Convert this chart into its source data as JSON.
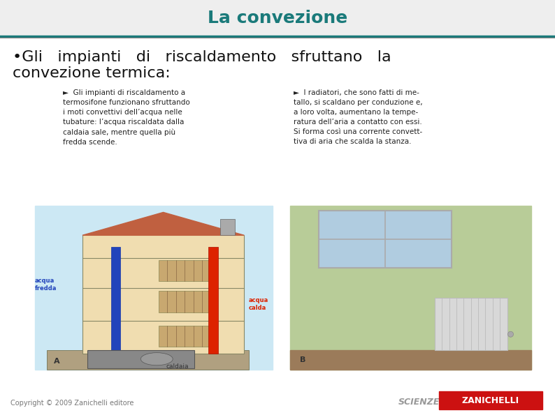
{
  "title": "La convezione",
  "title_color": "#1a7a7a",
  "title_fontsize": 18,
  "bg_color": "#ffffff",
  "header_bg_color": "#eeeeee",
  "header_line_color": "#1a7a7a",
  "bullet_line1": "•Gli   impianti   di   riscaldamento   sfruttano   la",
  "bullet_line2": "convezione termica:",
  "bullet_fontsize": 16,
  "bullet_color": "#111111",
  "caption_fontsize": 7.5,
  "caption_color": "#222222",
  "caption_arrow_color": "#c8760a",
  "left_caption": "►  Gli impianti di riscaldamento a\ntermosifone funzionano sfruttando\ni moti convettivi dell’acqua nelle\ntubature: l’acqua riscaldata dalla\ncaldaia sale, mentre quella più\nfredda scende.",
  "right_caption": "►  I radiatori, che sono fatti di me-\ntallo, si scaldano per conduzione e,\na loro volta, aumentano la tempe-\nratura dell’aria a contatto con essi.\nSi forma così una corrente convett-\ntiva di aria che scalda la stanza.",
  "copyright_text": "Copyright © 2009 Zanichelli editore",
  "copyright_fontsize": 7,
  "copyright_color": "#777777",
  "scienze_text": "SCIENZE",
  "zanichelli_text": "ZANICHELLI",
  "scienze_color": "#999999",
  "zanichelli_bg": "#cc1111",
  "zanichelli_color": "#ffffff",
  "logo_fontsize": 9,
  "divider_color": "#888888",
  "red_arrow": "#cc2200",
  "blue_arrow": "#2255cc",
  "building_bg": "#cce8f4",
  "building_wall": "#f0ddb0",
  "building_roof": "#c06040",
  "radiator_color": "#c8a870",
  "pipe_red": "#dd2200",
  "pipe_blue": "#2244bb",
  "room_wall": "#b8cc98",
  "room_floor": "#9b7b5a",
  "window_glass": "#b0cce0",
  "radiator_right": "#d8d8d8"
}
